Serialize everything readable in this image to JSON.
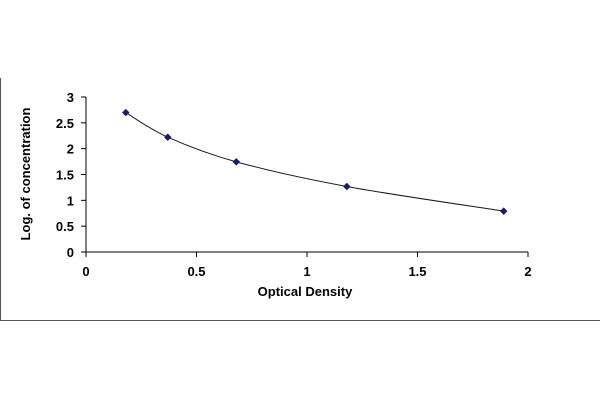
{
  "chart_data": {
    "type": "scatter",
    "title": "",
    "xlabel": "Optical Density",
    "ylabel": "Log. of concentration",
    "xlim": [
      0,
      2
    ],
    "ylim": [
      0,
      3
    ],
    "x_ticks": [
      "0",
      "0.5",
      "1",
      "1.5",
      "2"
    ],
    "y_ticks": [
      "0",
      "0.5",
      "1",
      "1.5",
      "2",
      "2.5",
      "3"
    ],
    "grid": false,
    "legend": "none",
    "trendline": "smooth curve through points",
    "series": [
      {
        "points": [
          {
            "x": 0.18,
            "y": 2.699
          },
          {
            "x": 0.37,
            "y": 2.222
          },
          {
            "x": 0.68,
            "y": 1.745
          },
          {
            "x": 1.18,
            "y": 1.268
          },
          {
            "x": 1.89,
            "y": 0.791
          }
        ],
        "color": "#1a1a6e"
      }
    ],
    "colors": {
      "axis": "#000000",
      "curve": "#1a1a1a",
      "marker": "#1a1a6e",
      "frame": "#555555"
    }
  }
}
